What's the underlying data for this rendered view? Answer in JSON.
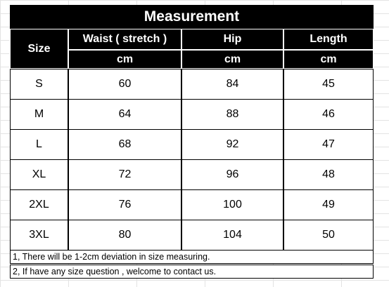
{
  "table": {
    "title": "Measurement",
    "size_header": "Size",
    "columns": [
      {
        "name": "Waist ( stretch )",
        "unit": "cm"
      },
      {
        "name": "Hip",
        "unit": "cm"
      },
      {
        "name": "Length",
        "unit": "cm"
      }
    ],
    "rows": [
      [
        "S",
        60,
        84,
        45
      ],
      [
        "M",
        64,
        88,
        46
      ],
      [
        "L",
        68,
        92,
        47
      ],
      [
        "XL",
        72,
        96,
        48
      ],
      [
        "2XL",
        76,
        100,
        49
      ],
      [
        "3XL",
        80,
        104,
        50
      ]
    ]
  },
  "notes": [
    "1, There will be 1-2cm deviation in size measuring.",
    "2, If have any size question , welcome to contact us."
  ]
}
